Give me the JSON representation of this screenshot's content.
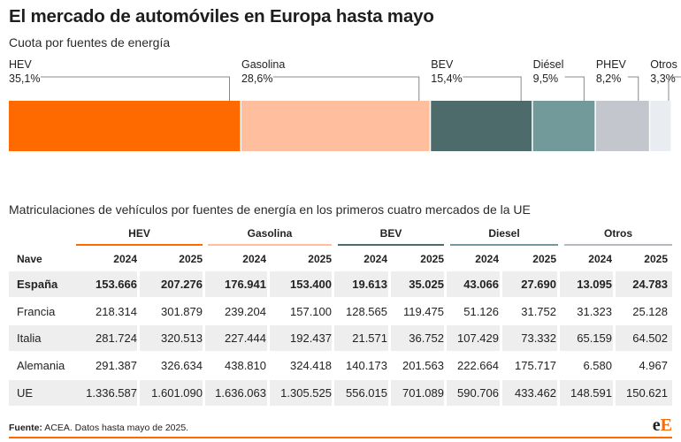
{
  "title": "El mercado de automóviles en Europa hasta mayo",
  "subtitle": "Cuota por fuentes de energía",
  "chart_data": {
    "type": "bar",
    "orientation": "horizontal-stacked-100",
    "title": "Cuota por fuentes de energía",
    "categories": [
      "HEV",
      "Gasolina",
      "BEV",
      "Diésel",
      "PHEV",
      "Otros"
    ],
    "values": [
      35.1,
      28.6,
      15.4,
      9.5,
      8.2,
      3.3
    ],
    "labels": [
      "35,1%",
      "28,6%",
      "15,4%",
      "9,5%",
      "8,2%",
      "3,3%"
    ],
    "colors": [
      "#ff6a00",
      "#ffbf9e",
      "#4e6b6b",
      "#729a9a",
      "#c3c6cc",
      "#e9ecf1"
    ]
  },
  "table": {
    "title": "Matriculaciones de vehículos por fuentes de energía en los primeros cuatro mercados de la UE",
    "groups": [
      {
        "label": "HEV",
        "color": "#ff6a00"
      },
      {
        "label": "Gasolina",
        "color": "#ffbf9e"
      },
      {
        "label": "BEV",
        "color": "#4e6b6b"
      },
      {
        "label": "Diesel",
        "color": "#729a9a"
      },
      {
        "label": "Otros",
        "color": "#b5b9c0"
      }
    ],
    "header": [
      "Nave",
      "2024",
      "2025",
      "2024",
      "2025",
      "2024",
      "2025",
      "2024",
      "2025",
      "2024",
      "2025"
    ],
    "rows": [
      [
        "España",
        "153.666",
        "207.276",
        "176.941",
        "153.400",
        "19.613",
        "35.025",
        "43.066",
        "27.690",
        "13.095",
        "24.783"
      ],
      [
        "Francia",
        "218.314",
        "301.879",
        "239.204",
        "157.100",
        "128.565",
        "119.475",
        "51.126",
        "31.752",
        "31.323",
        "25.128"
      ],
      [
        "Italia",
        "281.724",
        "320.513",
        "227.444",
        "192.437",
        "21.571",
        "36.752",
        "107.429",
        "73.332",
        "65.159",
        "64.502"
      ],
      [
        "Alemania",
        "291.387",
        "326.634",
        "438.810",
        "324.418",
        "140.173",
        "201.563",
        "222.664",
        "175.717",
        "6.580",
        "4.967"
      ],
      [
        "UE",
        "1.336.587",
        "1.601.090",
        "1.636.063",
        "1.305.525",
        "556.015",
        "701.089",
        "590.706",
        "433.462",
        "148.591",
        "150.621"
      ]
    ]
  },
  "source": {
    "label": "Fuente:",
    "text": " ACEA. Datos hasta mayo de 2025."
  },
  "logo": {
    "part1": "e",
    "part2": "E"
  }
}
